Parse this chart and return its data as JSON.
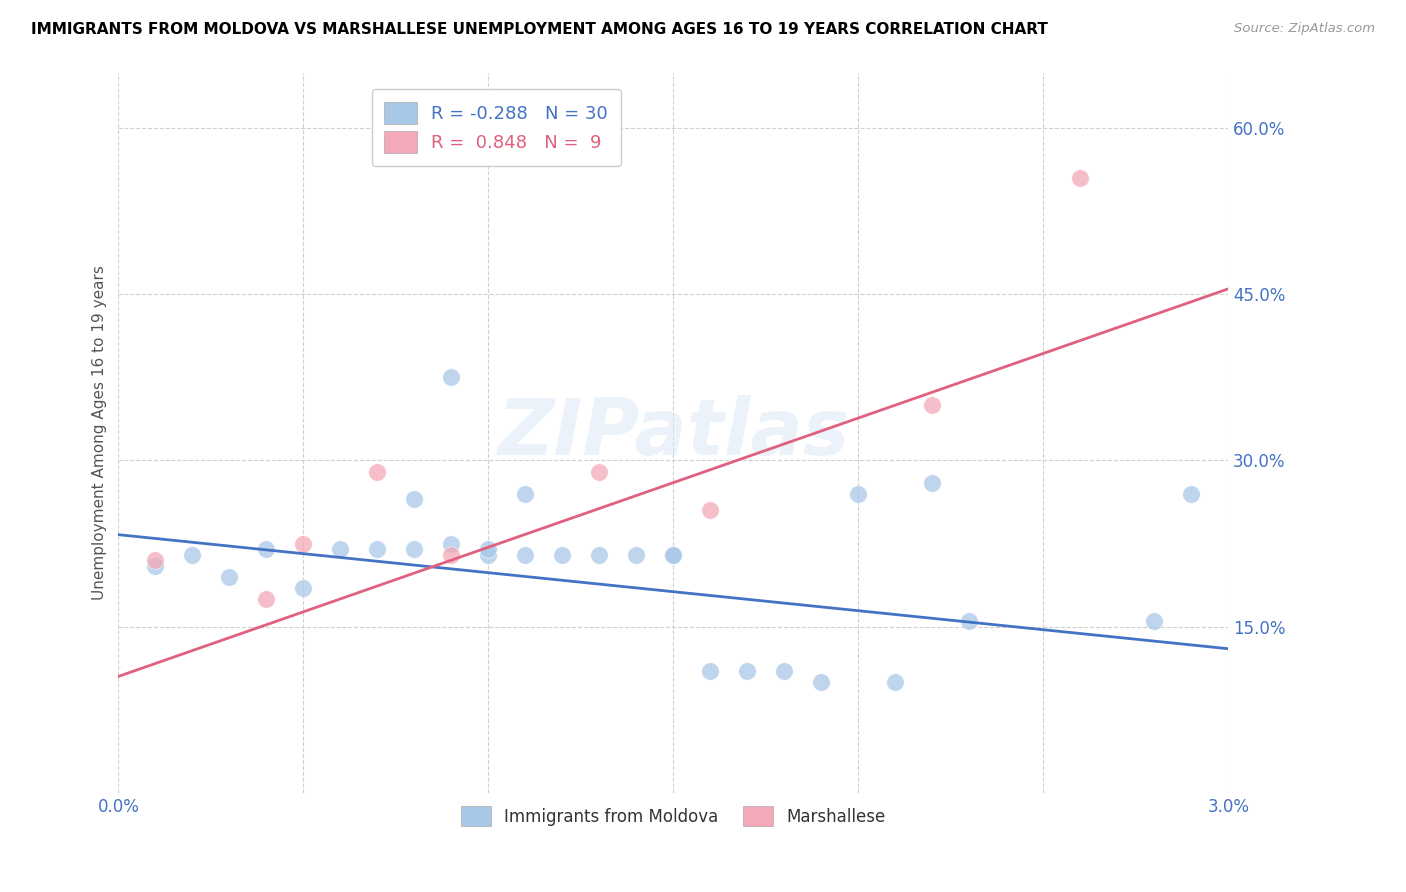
{
  "title": "IMMIGRANTS FROM MOLDOVA VS MARSHALLESE UNEMPLOYMENT AMONG AGES 16 TO 19 YEARS CORRELATION CHART",
  "source": "Source: ZipAtlas.com",
  "ylabel": "Unemployment Among Ages 16 to 19 years",
  "xlim": [
    0.0,
    0.03
  ],
  "ylim": [
    0.0,
    0.65
  ],
  "xticks": [
    0.0,
    0.005,
    0.01,
    0.015,
    0.02,
    0.025,
    0.03
  ],
  "xtick_labels": [
    "0.0%",
    "",
    "",
    "",
    "",
    "",
    "3.0%"
  ],
  "ytick_vals": [
    0.15,
    0.3,
    0.45,
    0.6
  ],
  "ytick_labels": [
    "15.0%",
    "30.0%",
    "45.0%",
    "60.0%"
  ],
  "moldova_color": "#a8c8e8",
  "marshallese_color": "#f4a8b8",
  "moldova_line_color": "#4472c4",
  "marshallese_line_color": "#e06080",
  "legend_r_moldova": "-0.288",
  "legend_n_moldova": "30",
  "legend_r_marshallese": "0.848",
  "legend_n_marshallese": "9",
  "watermark": "ZIPatlas",
  "moldova_scatter_x": [
    0.001,
    0.002,
    0.003,
    0.004,
    0.005,
    0.006,
    0.007,
    0.008,
    0.008,
    0.009,
    0.009,
    0.01,
    0.01,
    0.011,
    0.011,
    0.012,
    0.013,
    0.014,
    0.015,
    0.015,
    0.016,
    0.017,
    0.018,
    0.019,
    0.02,
    0.021,
    0.022,
    0.023,
    0.028,
    0.029
  ],
  "moldova_scatter_y": [
    0.205,
    0.215,
    0.195,
    0.22,
    0.185,
    0.22,
    0.22,
    0.265,
    0.22,
    0.375,
    0.225,
    0.215,
    0.22,
    0.215,
    0.27,
    0.215,
    0.215,
    0.215,
    0.215,
    0.215,
    0.11,
    0.11,
    0.11,
    0.1,
    0.27,
    0.1,
    0.28,
    0.155,
    0.155,
    0.27
  ],
  "marshallese_scatter_x": [
    0.001,
    0.004,
    0.005,
    0.007,
    0.009,
    0.013,
    0.016,
    0.022,
    0.026
  ],
  "marshallese_scatter_y": [
    0.21,
    0.175,
    0.225,
    0.29,
    0.215,
    0.29,
    0.255,
    0.35,
    0.555
  ],
  "moldova_trendline_x": [
    0.0,
    0.03
  ],
  "moldova_trendline_y": [
    0.233,
    0.13
  ],
  "marshallese_trendline_x": [
    0.0,
    0.03
  ],
  "marshallese_trendline_y": [
    0.105,
    0.455
  ]
}
